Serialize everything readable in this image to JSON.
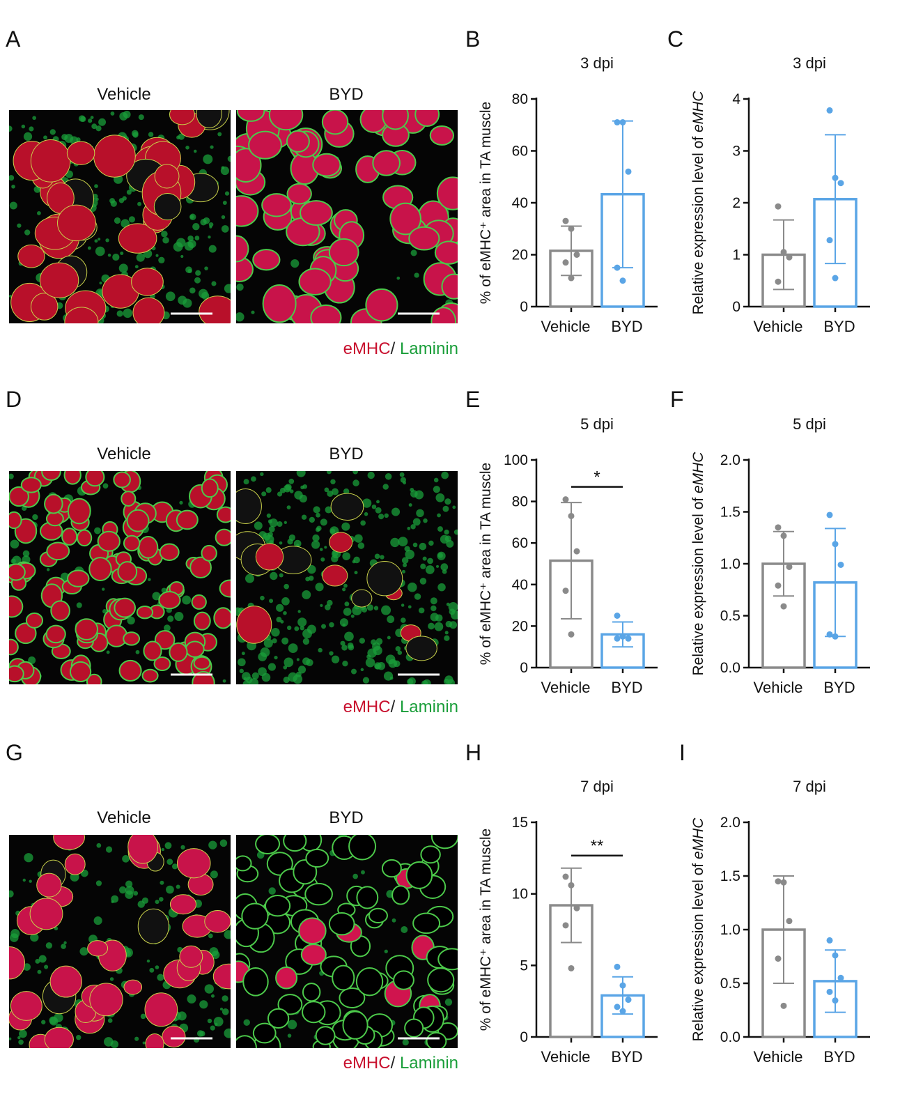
{
  "panels": {
    "A": "A",
    "B": "B",
    "C": "C",
    "D": "D",
    "E": "E",
    "F": "F",
    "G": "G",
    "H": "H",
    "I": "I"
  },
  "micrographs": {
    "rows": [
      {
        "left_label": "Vehicle",
        "right_label": "BYD",
        "legend_red": "eMHC",
        "legend_slash": "/",
        "legend_green": "Laminin",
        "left_style": "vehicle3",
        "right_style": "byd3"
      },
      {
        "left_label": "Vehicle",
        "right_label": "BYD",
        "legend_red": "eMHC",
        "legend_slash": "/",
        "legend_green": "Laminin",
        "left_style": "vehicle5",
        "right_style": "byd5"
      },
      {
        "left_label": "Vehicle",
        "right_label": "BYD",
        "legend_red": "eMHC",
        "legend_slash": "/",
        "legend_green": "Laminin",
        "left_style": "vehicle7",
        "right_style": "byd7"
      }
    ],
    "colors": {
      "emhc": "#c8102e",
      "laminin": "#1a9e3a"
    }
  },
  "colors": {
    "vehicle": "#8a8a8a",
    "byd": "#5aa5e6"
  },
  "chart_data": [
    {
      "id": "B",
      "type": "bar",
      "title": "3 dpi",
      "ylabel": "% of eMHC⁺ area in TA muscle",
      "ylabel_italic": "",
      "categories": [
        "Vehicle",
        "BYD"
      ],
      "ylim": [
        0,
        80
      ],
      "yticks": [
        "0",
        "20",
        "40",
        "60",
        "80"
      ],
      "ytick_values": [
        0,
        20,
        40,
        60,
        80
      ],
      "values": [
        21.5,
        43.3
      ],
      "errors": [
        [
          12.0,
          31.0
        ],
        [
          15.0,
          71.5
        ]
      ],
      "points": [
        [
          33,
          30,
          20,
          17,
          11
        ],
        [
          71,
          71,
          52,
          15,
          10
        ]
      ],
      "significance": null
    },
    {
      "id": "C",
      "type": "bar",
      "title": "3 dpi",
      "ylabel": "Relative expression level of ",
      "ylabel_italic": "eMHC",
      "categories": [
        "Vehicle",
        "BYD"
      ],
      "ylim": [
        0,
        4
      ],
      "yticks": [
        "0",
        "1",
        "2",
        "3",
        "4"
      ],
      "ytick_values": [
        0,
        1,
        2,
        3,
        4
      ],
      "values": [
        1.0,
        2.07
      ],
      "errors": [
        [
          0.33,
          1.67
        ],
        [
          0.83,
          3.31
        ]
      ],
      "points": [
        [
          1.93,
          1.05,
          0.95,
          0.48
        ],
        [
          3.78,
          2.48,
          2.38,
          1.28,
          0.55
        ]
      ],
      "significance": null
    },
    {
      "id": "E",
      "type": "bar",
      "title": "5 dpi",
      "ylabel": "% of eMHC⁺ area in TA muscle",
      "ylabel_italic": "",
      "categories": [
        "Vehicle",
        "BYD"
      ],
      "ylim": [
        0,
        100
      ],
      "yticks": [
        "0",
        "20",
        "40",
        "60",
        "80",
        "100"
      ],
      "ytick_values": [
        0,
        20,
        40,
        60,
        80,
        100
      ],
      "values": [
        51.5,
        16.0
      ],
      "errors": [
        [
          23.5,
          79.5
        ],
        [
          10.0,
          22.0
        ]
      ],
      "points": [
        [
          81,
          73,
          56,
          37,
          16
        ],
        [
          25,
          15,
          14,
          14
        ]
      ],
      "significance": "*"
    },
    {
      "id": "F",
      "type": "bar",
      "title": "5 dpi",
      "ylabel": "Relative expression level of ",
      "ylabel_italic": "eMHC",
      "categories": [
        "Vehicle",
        "BYD"
      ],
      "ylim": [
        0,
        2.0
      ],
      "yticks": [
        "0.0",
        "0.5",
        "1.0",
        "1.5",
        "2.0"
      ],
      "ytick_values": [
        0,
        0.5,
        1.0,
        1.5,
        2.0
      ],
      "values": [
        1.0,
        0.82
      ],
      "errors": [
        [
          0.69,
          1.31
        ],
        [
          0.3,
          1.34
        ]
      ],
      "points": [
        [
          1.35,
          1.27,
          0.97,
          0.79,
          0.59
        ],
        [
          1.47,
          1.19,
          0.99,
          0.32,
          0.3
        ]
      ],
      "significance": null
    },
    {
      "id": "H",
      "type": "bar",
      "title": "7 dpi",
      "ylabel": "% of eMHC⁺ area in TA muscle",
      "ylabel_italic": "",
      "categories": [
        "Vehicle",
        "BYD"
      ],
      "ylim": [
        0,
        15
      ],
      "yticks": [
        "0",
        "5",
        "10",
        "15"
      ],
      "ytick_values": [
        0,
        5,
        10,
        15
      ],
      "values": [
        9.2,
        2.9
      ],
      "errors": [
        [
          6.6,
          11.8
        ],
        [
          1.6,
          4.2
        ]
      ],
      "points": [
        [
          11.2,
          10.6,
          9.0,
          7.8,
          4.8
        ],
        [
          4.9,
          3.6,
          2.6,
          2.1,
          1.8
        ]
      ],
      "significance": "**"
    },
    {
      "id": "I",
      "type": "bar",
      "title": "7 dpi",
      "ylabel": "Relative expression level of ",
      "ylabel_italic": "eMHC",
      "categories": [
        "Vehicle",
        "BYD"
      ],
      "ylim": [
        0,
        2.0
      ],
      "yticks": [
        "0.0",
        "0.5",
        "1.0",
        "1.5",
        "2.0"
      ],
      "ytick_values": [
        0,
        0.5,
        1.0,
        1.5,
        2.0
      ],
      "values": [
        1.0,
        0.52
      ],
      "errors": [
        [
          0.5,
          1.5
        ],
        [
          0.23,
          0.81
        ]
      ],
      "points": [
        [
          1.45,
          1.44,
          1.08,
          0.73,
          0.29
        ],
        [
          0.9,
          0.76,
          0.55,
          0.42,
          0.34
        ]
      ],
      "significance": null
    }
  ]
}
